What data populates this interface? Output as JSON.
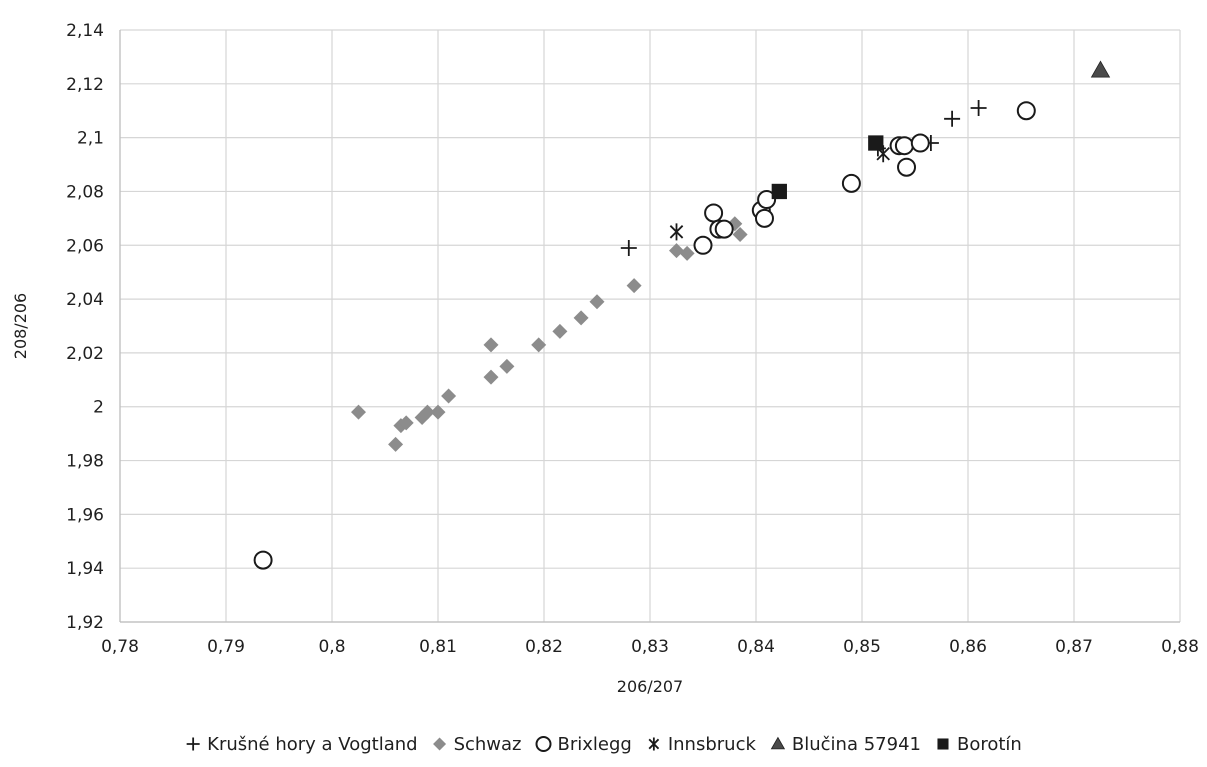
{
  "chart_data": {
    "type": "scatter",
    "xlabel": "206/207",
    "ylabel": "208/206",
    "xlim": [
      0.78,
      0.88
    ],
    "ylim": [
      1.92,
      2.14
    ],
    "x_ticks": [
      "0,78",
      "0,79",
      "0,8",
      "0,81",
      "0,82",
      "0,83",
      "0,84",
      "0,85",
      "0,86",
      "0,87",
      "0,88"
    ],
    "y_ticks": [
      "1,92",
      "1,94",
      "1,96",
      "1,98",
      "2",
      "2,02",
      "2,04",
      "2,06",
      "2,08",
      "2,1",
      "2,12",
      "2,14"
    ],
    "x_tick_values": [
      0.78,
      0.79,
      0.8,
      0.81,
      0.82,
      0.83,
      0.84,
      0.85,
      0.86,
      0.87,
      0.88
    ],
    "y_tick_values": [
      1.92,
      1.94,
      1.96,
      1.98,
      2.0,
      2.02,
      2.04,
      2.06,
      2.08,
      2.1,
      2.12,
      2.14
    ],
    "grid": true,
    "legend_position": "bottom",
    "series": [
      {
        "name": "Krušné hory a Vogtland",
        "marker": "plus",
        "color": "#1a1a1a",
        "points": [
          [
            0.828,
            2.059
          ],
          [
            0.8515,
            2.096
          ],
          [
            0.8565,
            2.098
          ],
          [
            0.8585,
            2.107
          ],
          [
            0.861,
            2.111
          ]
        ]
      },
      {
        "name": "Schwaz",
        "marker": "diamond",
        "color": "#8c8c8c",
        "points": [
          [
            0.8025,
            1.998
          ],
          [
            0.806,
            1.986
          ],
          [
            0.8065,
            1.993
          ],
          [
            0.807,
            1.994
          ],
          [
            0.8085,
            1.996
          ],
          [
            0.809,
            1.998
          ],
          [
            0.81,
            1.998
          ],
          [
            0.811,
            2.004
          ],
          [
            0.815,
            2.011
          ],
          [
            0.815,
            2.023
          ],
          [
            0.8165,
            2.015
          ],
          [
            0.8195,
            2.023
          ],
          [
            0.8215,
            2.028
          ],
          [
            0.8235,
            2.033
          ],
          [
            0.825,
            2.039
          ],
          [
            0.8285,
            2.045
          ],
          [
            0.8325,
            2.058
          ],
          [
            0.8335,
            2.057
          ],
          [
            0.838,
            2.068
          ],
          [
            0.8385,
            2.064
          ]
        ]
      },
      {
        "name": "Brixlegg",
        "marker": "circle",
        "color": "#1a1a1a",
        "points": [
          [
            0.7935,
            1.943
          ],
          [
            0.835,
            2.06
          ],
          [
            0.836,
            2.072
          ],
          [
            0.8365,
            2.066
          ],
          [
            0.837,
            2.066
          ],
          [
            0.8405,
            2.073
          ],
          [
            0.8408,
            2.07
          ],
          [
            0.841,
            2.077
          ],
          [
            0.849,
            2.083
          ],
          [
            0.8535,
            2.097
          ],
          [
            0.854,
            2.097
          ],
          [
            0.8542,
            2.089
          ],
          [
            0.8555,
            2.098
          ],
          [
            0.8655,
            2.11
          ]
        ]
      },
      {
        "name": "Innsbruck",
        "marker": "asterisk",
        "color": "#1a1a1a",
        "points": [
          [
            0.8325,
            2.065
          ],
          [
            0.852,
            2.094
          ]
        ]
      },
      {
        "name": "Blučina 57941",
        "marker": "triangle",
        "color": "#4a4a4a",
        "points": [
          [
            0.8725,
            2.125
          ]
        ]
      },
      {
        "name": "Borotín",
        "marker": "square",
        "color": "#1a1a1a",
        "points": [
          [
            0.8422,
            2.08
          ],
          [
            0.8513,
            2.098
          ]
        ]
      }
    ]
  }
}
